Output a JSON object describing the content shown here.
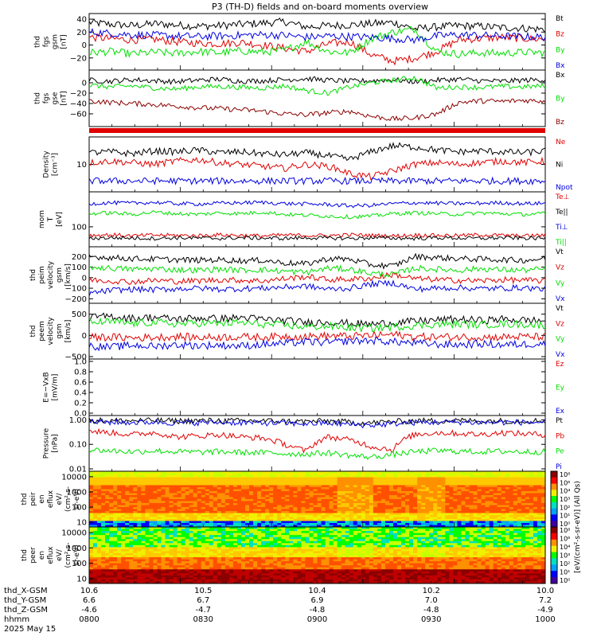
{
  "title": "P3 (TH-D) fields and on-board moments overview",
  "colors": {
    "black": "#000000",
    "red": "#e00000",
    "green": "#00e000",
    "blue": "#0000e0",
    "darkred": "#8b0000"
  },
  "chart_data": [
    {
      "type": "line",
      "id": "fgs_gsm",
      "ylabel": [
        "thd",
        "fgs",
        "gsm",
        "[nT]"
      ],
      "ylim": [
        -35,
        45
      ],
      "yticks": [
        "40",
        "20",
        "0",
        "−20"
      ],
      "series": [
        {
          "name": "Bt",
          "color": "black",
          "values": [
            35,
            32,
            30,
            33,
            31,
            29,
            30,
            32,
            34,
            36,
            28,
            30,
            31,
            33,
            35,
            25,
            28,
            30,
            29,
            27,
            26,
            24
          ]
        },
        {
          "name": "Bz",
          "color": "red",
          "values": [
            12,
            10,
            8,
            9,
            5,
            3,
            2,
            4,
            0,
            -5,
            -10,
            2,
            5,
            -15,
            -25,
            -20,
            -10,
            8,
            10,
            12,
            10,
            9
          ]
        },
        {
          "name": "By",
          "color": "green",
          "values": [
            -12,
            -10,
            -14,
            -11,
            -13,
            -10,
            -12,
            -9,
            -11,
            -8,
            5,
            -10,
            -12,
            10,
            20,
            25,
            -10,
            -14,
            -12,
            -13,
            -11,
            -12
          ]
        },
        {
          "name": "Bx",
          "color": "blue",
          "values": [
            20,
            18,
            16,
            15,
            14,
            13,
            14,
            15,
            16,
            15,
            12,
            14,
            13,
            12,
            10,
            8,
            14,
            16,
            15,
            14,
            13,
            12
          ]
        }
      ]
    },
    {
      "type": "line",
      "id": "fgs_gse",
      "ylabel": [
        "thd",
        "fgs",
        "gse",
        "[nT]"
      ],
      "ylim": [
        -80,
        20
      ],
      "yticks": [
        "0",
        "−20",
        "−40",
        "−60"
      ],
      "series": [
        {
          "name": "Bx",
          "color": "black",
          "values": [
            5,
            3,
            6,
            4,
            2,
            5,
            7,
            3,
            4,
            6,
            8,
            5,
            3,
            4,
            6,
            2,
            5,
            7,
            4,
            3,
            5,
            6
          ]
        },
        {
          "name": "By",
          "color": "green",
          "values": [
            -5,
            -8,
            -6,
            -10,
            -12,
            -8,
            -7,
            -9,
            -10,
            -6,
            -15,
            -20,
            -8,
            0,
            5,
            10,
            -10,
            -8,
            -9,
            -7,
            -8,
            -6
          ]
        },
        {
          "name": "Bz",
          "color": "darkred",
          "values": [
            -35,
            -38,
            -40,
            -42,
            -45,
            -48,
            -50,
            -52,
            -55,
            -60,
            -62,
            -58,
            -55,
            -65,
            -70,
            -68,
            -60,
            -38,
            -35,
            -36,
            -34,
            -35
          ]
        }
      ]
    },
    {
      "type": "line",
      "id": "density",
      "ylabel": [
        "Density",
        "[cm⁻³]"
      ],
      "yscale": "log",
      "yticks": [
        "10"
      ],
      "series": [
        {
          "name": "Ne",
          "color": "red",
          "values": [
            11,
            12,
            11,
            10,
            12,
            13,
            11,
            10,
            9,
            8,
            10,
            9,
            6,
            5,
            7,
            10,
            11,
            10,
            11,
            12,
            11,
            12
          ]
        },
        {
          "name": "Ni",
          "color": "black",
          "values": [
            19,
            20,
            18,
            21,
            20,
            22,
            19,
            20,
            18,
            17,
            19,
            16,
            13,
            20,
            28,
            26,
            22,
            20,
            21,
            20,
            19,
            21
          ]
        },
        {
          "name": "Npot",
          "color": "blue",
          "values": [
            4,
            4,
            4,
            4,
            4,
            4,
            4,
            4,
            4,
            4,
            4,
            4,
            4,
            4,
            4,
            4,
            4,
            4,
            4,
            4,
            4,
            4
          ]
        }
      ]
    },
    {
      "type": "line",
      "id": "temperature",
      "ylabel": [
        "mom",
        "T",
        "[eV]"
      ],
      "yscale": "log",
      "yticks": [
        "100"
      ],
      "series": [
        {
          "name": "Te⊥",
          "color": "red",
          "values": [
            60,
            62,
            58,
            61,
            60,
            59,
            62,
            60,
            58,
            61,
            60,
            59,
            62,
            60,
            58,
            61,
            60,
            59,
            62,
            60,
            58,
            61
          ]
        },
        {
          "name": "Te||",
          "color": "black",
          "values": [
            50,
            52,
            51,
            50,
            52,
            51,
            50,
            52,
            51,
            50,
            52,
            51,
            50,
            52,
            51,
            50,
            52,
            51,
            50,
            52,
            51,
            50
          ]
        },
        {
          "name": "Ti⊥",
          "color": "blue",
          "values": [
            400,
            420,
            410,
            430,
            400,
            390,
            410,
            420,
            430,
            400,
            390,
            380,
            350,
            360,
            400,
            420,
            410,
            400,
            410,
            420,
            400,
            410
          ]
        },
        {
          "name": "Ti||",
          "color": "green",
          "values": [
            220,
            230,
            210,
            240,
            220,
            210,
            230,
            220,
            240,
            210,
            200,
            190,
            180,
            190,
            220,
            230,
            220,
            210,
            230,
            220,
            210,
            220
          ]
        }
      ]
    },
    {
      "type": "line",
      "id": "peim_velocity",
      "ylabel": [
        "thd",
        "peim",
        "velocity",
        "gsm",
        "[km/s]"
      ],
      "ylim": [
        -220,
        270
      ],
      "yticks": [
        "200",
        "100",
        "0",
        "−100",
        "−200"
      ],
      "series": [
        {
          "name": "Vt",
          "color": "black",
          "values": [
            200,
            190,
            180,
            175,
            170,
            165,
            170,
            160,
            165,
            140,
            130,
            180,
            175,
            120,
            110,
            200,
            190,
            180,
            175,
            170,
            165,
            180
          ]
        },
        {
          "name": "Vz",
          "color": "red",
          "values": [
            -20,
            -30,
            -40,
            -25,
            -35,
            -30,
            -20,
            -25,
            -30,
            -10,
            10,
            -20,
            -15,
            -5,
            30,
            -10,
            -20,
            -25,
            -30,
            -20,
            -25,
            -30
          ]
        },
        {
          "name": "Vy",
          "color": "green",
          "values": [
            100,
            90,
            80,
            85,
            75,
            70,
            80,
            70,
            75,
            60,
            50,
            90,
            80,
            40,
            30,
            90,
            80,
            70,
            85,
            75,
            70,
            80
          ]
        },
        {
          "name": "Vx",
          "color": "blue",
          "values": [
            -150,
            -120,
            -110,
            -115,
            -105,
            -100,
            -110,
            -105,
            -100,
            -90,
            -80,
            -110,
            -100,
            -60,
            -50,
            -110,
            -100,
            -95,
            -105,
            -100,
            -95,
            -110
          ]
        }
      ]
    },
    {
      "type": "line",
      "id": "peem_velocity",
      "ylabel": [
        "thd",
        "peem",
        "velocity",
        "gsm",
        "[km/s]"
      ],
      "ylim": [
        -500,
        700
      ],
      "yticks": [
        "500",
        "0",
        "−500"
      ],
      "series": [
        {
          "name": "Vt",
          "color": "black",
          "values": [
            420,
            450,
            400,
            430,
            380,
            410,
            390,
            420,
            380,
            350,
            300,
            320,
            280,
            260,
            300,
            330,
            360,
            380,
            350,
            380,
            360,
            340
          ]
        },
        {
          "name": "Vz",
          "color": "red",
          "values": [
            -50,
            -40,
            -60,
            -45,
            -30,
            -50,
            -40,
            -35,
            -45,
            -20,
            -30,
            -10,
            -20,
            0,
            20,
            -30,
            -40,
            -35,
            -45,
            -40,
            -30,
            -35
          ]
        },
        {
          "name": "Vy",
          "color": "green",
          "values": [
            300,
            320,
            280,
            310,
            270,
            290,
            280,
            300,
            260,
            240,
            200,
            220,
            180,
            170,
            200,
            230,
            260,
            270,
            250,
            270,
            260,
            240
          ]
        },
        {
          "name": "Vx",
          "color": "blue",
          "values": [
            -250,
            -280,
            -230,
            -260,
            -220,
            -240,
            -230,
            -250,
            -210,
            -190,
            -150,
            -170,
            -130,
            -120,
            -150,
            -180,
            -210,
            -220,
            -200,
            -220,
            -210,
            -190
          ]
        }
      ]
    },
    {
      "type": "line",
      "id": "efield",
      "ylabel": [
        "E=−VxB",
        "[mV/m]"
      ],
      "ylim": [
        0,
        1
      ],
      "yticks": [
        "1.0",
        "0.8",
        "0.6",
        "0.4",
        "0.2",
        "0.0"
      ],
      "series": [
        {
          "name": "Ez",
          "color": "red",
          "values": []
        },
        {
          "name": "Ey",
          "color": "green",
          "values": []
        },
        {
          "name": "Ex",
          "color": "blue",
          "values": []
        }
      ]
    },
    {
      "type": "line",
      "id": "pressure",
      "ylabel": [
        "Pressure",
        "[nPa]"
      ],
      "yscale": "log",
      "yticks": [
        "1.00",
        "0.10",
        "0.01"
      ],
      "series": [
        {
          "name": "Pt",
          "color": "black",
          "values": [
            0.95,
            0.93,
            0.92,
            0.94,
            0.9,
            0.92,
            0.93,
            0.9,
            0.91,
            0.88,
            0.85,
            0.9,
            0.8,
            0.75,
            0.85,
            0.9,
            0.92,
            0.93,
            0.9,
            0.91,
            0.9,
            0.92
          ]
        },
        {
          "name": "Pb",
          "color": "red",
          "values": [
            0.35,
            0.3,
            0.25,
            0.3,
            0.2,
            0.22,
            0.25,
            0.2,
            0.18,
            0.1,
            0.05,
            0.2,
            0.15,
            0.08,
            0.06,
            0.25,
            0.3,
            0.28,
            0.25,
            0.3,
            0.27,
            0.25
          ]
        },
        {
          "name": "Pe",
          "color": "green",
          "values": [
            0.06,
            0.055,
            0.05,
            0.055,
            0.05,
            0.048,
            0.05,
            0.047,
            0.046,
            0.042,
            0.04,
            0.045,
            0.035,
            0.03,
            0.038,
            0.05,
            0.055,
            0.052,
            0.05,
            0.052,
            0.05,
            0.05
          ]
        },
        {
          "name": "Pi",
          "color": "blue",
          "values": [
            0.85,
            0.8,
            0.78,
            0.82,
            0.75,
            0.77,
            0.8,
            0.76,
            0.75,
            0.72,
            0.7,
            0.74,
            0.65,
            0.6,
            0.7,
            0.78,
            0.8,
            0.82,
            0.78,
            0.8,
            0.79,
            0.8
          ]
        }
      ]
    },
    {
      "type": "heatmap",
      "id": "peir_en",
      "ylabel": [
        "thd",
        "peir",
        "en",
        "eflux",
        "eV/",
        "(cm²-s-",
        "sr-eV)"
      ],
      "yscale": "log",
      "yticks": [
        "10000",
        "1000",
        "100",
        "10"
      ]
    },
    {
      "type": "heatmap",
      "id": "peer_en",
      "ylabel": [
        "thd",
        "peer",
        "en",
        "eflux",
        "eV/",
        "(cm²-s-",
        "sr-eV)"
      ],
      "yscale": "log",
      "yticks": [
        "10000",
        "1000",
        "100",
        "10"
      ]
    }
  ],
  "colorbar": {
    "label": "[eV/(cm²-s-sr-eV)] (All Qs)",
    "ticks_top": [
      "10⁸",
      "10⁶",
      "10⁴",
      "10³",
      "10²",
      "10¹",
      "10⁰"
    ],
    "ticks_bottom": [
      "10⁸",
      "10⁶",
      "10⁴",
      "10³",
      "10²",
      "10¹",
      "10⁰"
    ]
  },
  "xaxis": {
    "rows": [
      {
        "label": "thd_X-GSM",
        "values": [
          "10.6",
          "10.5",
          "10.4",
          "10.2",
          "10.0"
        ]
      },
      {
        "label": "thd_Y-GSM",
        "values": [
          "6.6",
          "6.7",
          "6.9",
          "7.0",
          "7.2"
        ]
      },
      {
        "label": "thd_Z-GSM",
        "values": [
          "-4.6",
          "-4.7",
          "-4.8",
          "-4.8",
          "-4.9"
        ]
      },
      {
        "label": "hhmm",
        "values": [
          "0800",
          "0830",
          "0900",
          "0930",
          "1000"
        ]
      }
    ],
    "date": "2025 May 15"
  }
}
